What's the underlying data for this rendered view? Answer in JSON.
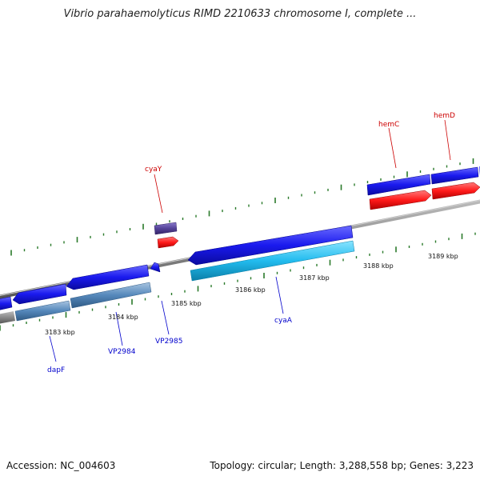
{
  "title": "Vibrio parahaemolyticus RIMD 2210633 chromosome I, complete ...",
  "footer": {
    "accession": "Accession: NC_004603",
    "summary": "Topology: circular; Length: 3,288,558 bp; Genes: 3,223"
  },
  "colors": {
    "backbone": "#888888",
    "tick": "#2a7a2a",
    "forward_gene": "#ff1a1a",
    "reverse_gene": "#1a1aee",
    "light_blue_gene": "#22bbee",
    "steel_blue_gene": "#5588bb",
    "purple_gene": "#554499",
    "label_red": "#cc0000",
    "label_blue": "#0000cc"
  },
  "scale_labels": [
    "3183 kbp",
    "3184 kbp",
    "3185 kbp",
    "3186 kbp",
    "3187 kbp",
    "3188 kbp",
    "3189 kbp"
  ],
  "gene_labels": [
    {
      "name": "cyaY",
      "strand": "forward"
    },
    {
      "name": "hemC",
      "strand": "forward"
    },
    {
      "name": "hemD",
      "strand": "forward"
    },
    {
      "name": "dapF",
      "strand": "reverse"
    },
    {
      "name": "VP2984",
      "strand": "reverse"
    },
    {
      "name": "VP2985",
      "strand": "reverse"
    },
    {
      "name": "cyaA",
      "strand": "reverse"
    }
  ]
}
